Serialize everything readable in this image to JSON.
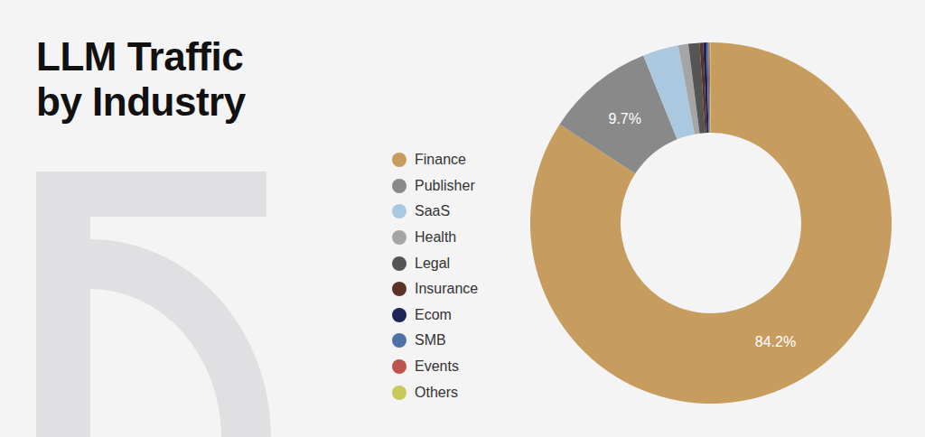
{
  "chart_data": {
    "type": "pie",
    "title": "LLM Traffic by Industry",
    "categories": [
      "Finance",
      "Publisher",
      "SaaS",
      "Health",
      "Legal",
      "Insurance",
      "Ecom",
      "SMB",
      "Events",
      "Others"
    ],
    "values": [
      84.2,
      9.7,
      3.2,
      0.9,
      1.0,
      0.3,
      0.3,
      0.2,
      0.1,
      0.1
    ],
    "value_labels": [
      "84.2%",
      "9.7%",
      null,
      null,
      null,
      null,
      null,
      null,
      null,
      null
    ],
    "colors": [
      "#c69c5f",
      "#898989",
      "#aac8df",
      "#a5a5a5",
      "#555555",
      "#5a3324",
      "#1e2456",
      "#4e70a8",
      "#c0524e",
      "#c7c95a"
    ],
    "data_labels": true,
    "legend": "left"
  }
}
